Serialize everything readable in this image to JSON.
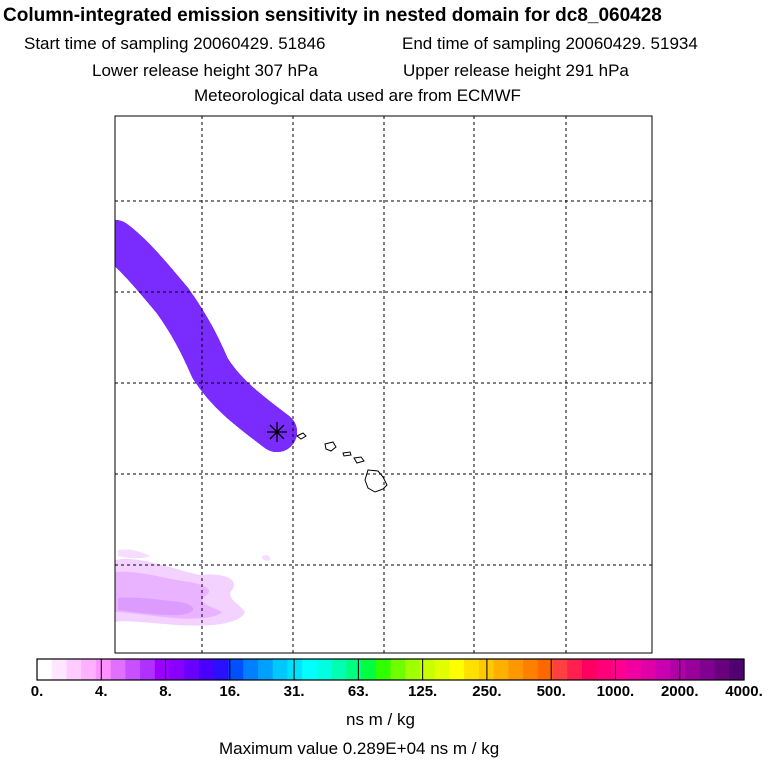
{
  "header": {
    "title": "Column-integrated emission sensitivity in nested domain for dc8_060428",
    "start_label": "Start time of sampling 20060429. 51846",
    "end_label": "End time of sampling 20060429. 51934",
    "lower_label": "Lower release height  307 hPa",
    "upper_label": "Upper release height  291 hPa",
    "met_label": "Meteorological data used are from ECMWF"
  },
  "map": {
    "grid": "dashed",
    "release_marker": "star-icon",
    "plume_colors": [
      "#7a2cff",
      "#00e0e0",
      "#a8ff00",
      "#ffd700",
      "#ff7f00",
      "#ff0090",
      "#e0009a"
    ],
    "faint_region_color": "#f0c8ff"
  },
  "legend": {
    "colors": [
      "#ffffff",
      "#ffe8ff",
      "#ffccff",
      "#ffb0ff",
      "#ff90ff",
      "#e070ff",
      "#c850ff",
      "#b030ff",
      "#9c00ff",
      "#8a00ff",
      "#6a00ff",
      "#4a00ff",
      "#2a10ff",
      "#0050ff",
      "#0080ff",
      "#00a0ff",
      "#00c8ff",
      "#00e0ff",
      "#00ffff",
      "#00ffe0",
      "#00ffb0",
      "#00ff80",
      "#00ff40",
      "#30ff00",
      "#70ff00",
      "#a0ff00",
      "#c8ff00",
      "#e0ff00",
      "#ffff00",
      "#ffe000",
      "#ffc800",
      "#ffb000",
      "#ff9800",
      "#ff8000",
      "#ff6800",
      "#ff4040",
      "#ff2050",
      "#ff0060",
      "#ff0078",
      "#ff0090",
      "#f000a0",
      "#e000a8",
      "#c800b0",
      "#b000a8",
      "#98009c",
      "#800090",
      "#680080",
      "#500070"
    ],
    "ticks": [
      "0.",
      "4.",
      "8.",
      "16.",
      "31.",
      "63.",
      "125.",
      "250.",
      "500.",
      "1000.",
      "2000.",
      "4000."
    ],
    "units": "ns m / kg",
    "max_text": "Maximum value  0.289E+04 ns m / kg"
  }
}
